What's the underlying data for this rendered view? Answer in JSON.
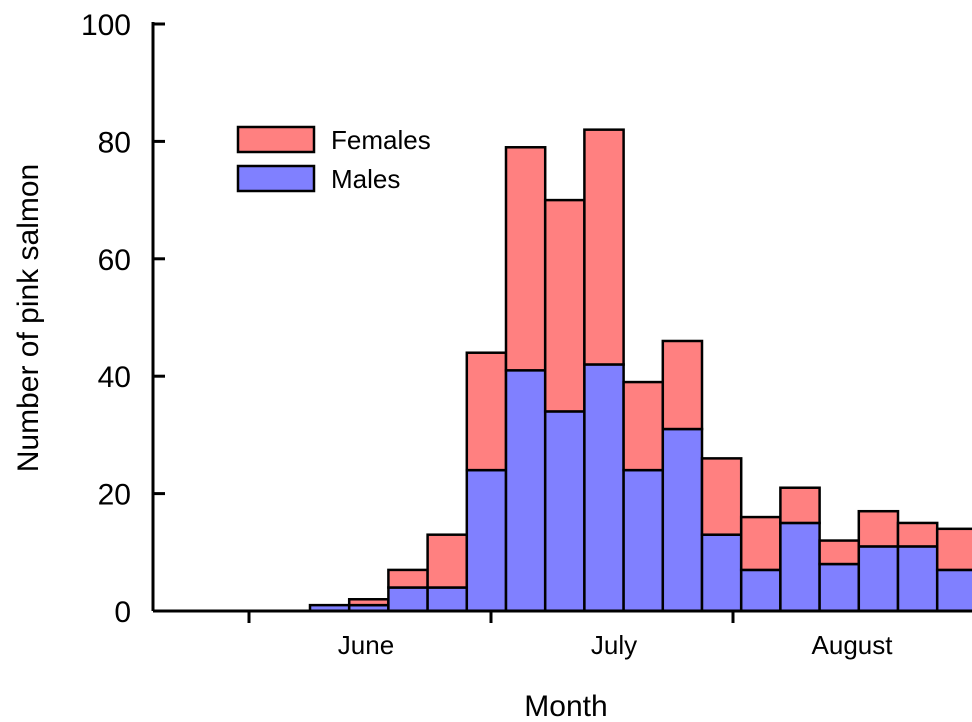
{
  "chart_data": {
    "type": "bar",
    "stacked": true,
    "xlabel": "Month",
    "ylabel": "Number of pink salmon",
    "ylim": [
      0,
      100
    ],
    "yticks": [
      0,
      20,
      40,
      60,
      80,
      100
    ],
    "x_tick_labels": [
      "June",
      "July",
      "August"
    ],
    "legend_position": "upper-left",
    "series": [
      {
        "name": "Males",
        "color": "#8080ff",
        "values": [
          1,
          1,
          4,
          4,
          24,
          41,
          34,
          42,
          24,
          31,
          13,
          7,
          15,
          8,
          11,
          11,
          7
        ]
      },
      {
        "name": "Females",
        "color": "#ff8080",
        "values": [
          0,
          1,
          3,
          9,
          20,
          38,
          36,
          40,
          15,
          15,
          13,
          9,
          6,
          4,
          6,
          4,
          7
        ]
      }
    ],
    "totals": [
      1,
      2,
      7,
      13,
      44,
      79,
      70,
      82,
      39,
      46,
      26,
      16,
      21,
      12,
      17,
      15,
      14
    ],
    "legend": [
      "Females",
      "Males"
    ]
  }
}
